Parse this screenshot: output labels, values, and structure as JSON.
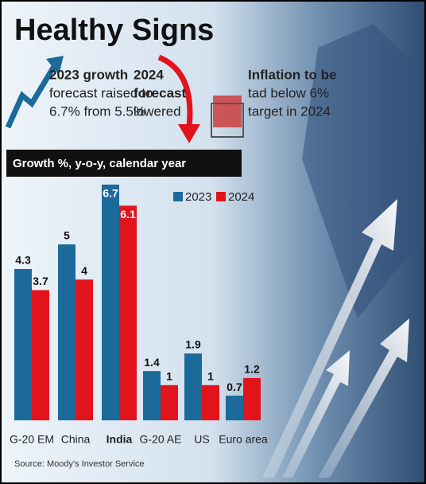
{
  "chart_data": {
    "type": "bar",
    "title": "Healthy Signs",
    "annotations": [
      [
        "2023 growth",
        "forecast raised to",
        "6.7% from 5.5%"
      ],
      [
        "2024",
        "forecast",
        "lowered"
      ],
      [
        "Inflation to be",
        "tad below 6%",
        "target in 2024"
      ]
    ],
    "subtitle": "Growth %, y-o-y, calendar year",
    "categories": [
      "G-20 EM",
      "China",
      "India",
      "G-20 AE",
      "US",
      "Euro area"
    ],
    "series": [
      {
        "name": "2023",
        "color": "#1b6a9a",
        "values": [
          4.3,
          5,
          6.7,
          1.4,
          1.9,
          0.7
        ]
      },
      {
        "name": "2024",
        "color": "#e1141c",
        "values": [
          3.7,
          4,
          6.1,
          1,
          1,
          1.2
        ]
      }
    ],
    "source": "Source: Moody's Investor Service"
  }
}
